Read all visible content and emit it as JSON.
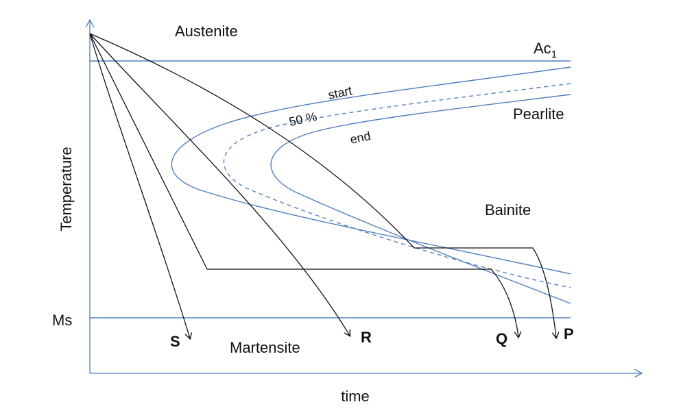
{
  "axes": {
    "y_label": "Temperature",
    "x_label": "time"
  },
  "regions": {
    "austenite": "Austenite",
    "pearlite": "Pearlite",
    "bainite": "Bainite",
    "martensite": "Martensite"
  },
  "lines": {
    "ac1_main": "Ac",
    "ac1_sub": "1",
    "ms": "Ms"
  },
  "curves": {
    "start": "start",
    "fifty": "50 %",
    "end": "end"
  },
  "paths": {
    "s": "S",
    "r": "R",
    "q": "Q",
    "p": "P"
  },
  "colors": {
    "curve_blue": "#4f7fbf",
    "cooling_black": "#111111"
  }
}
